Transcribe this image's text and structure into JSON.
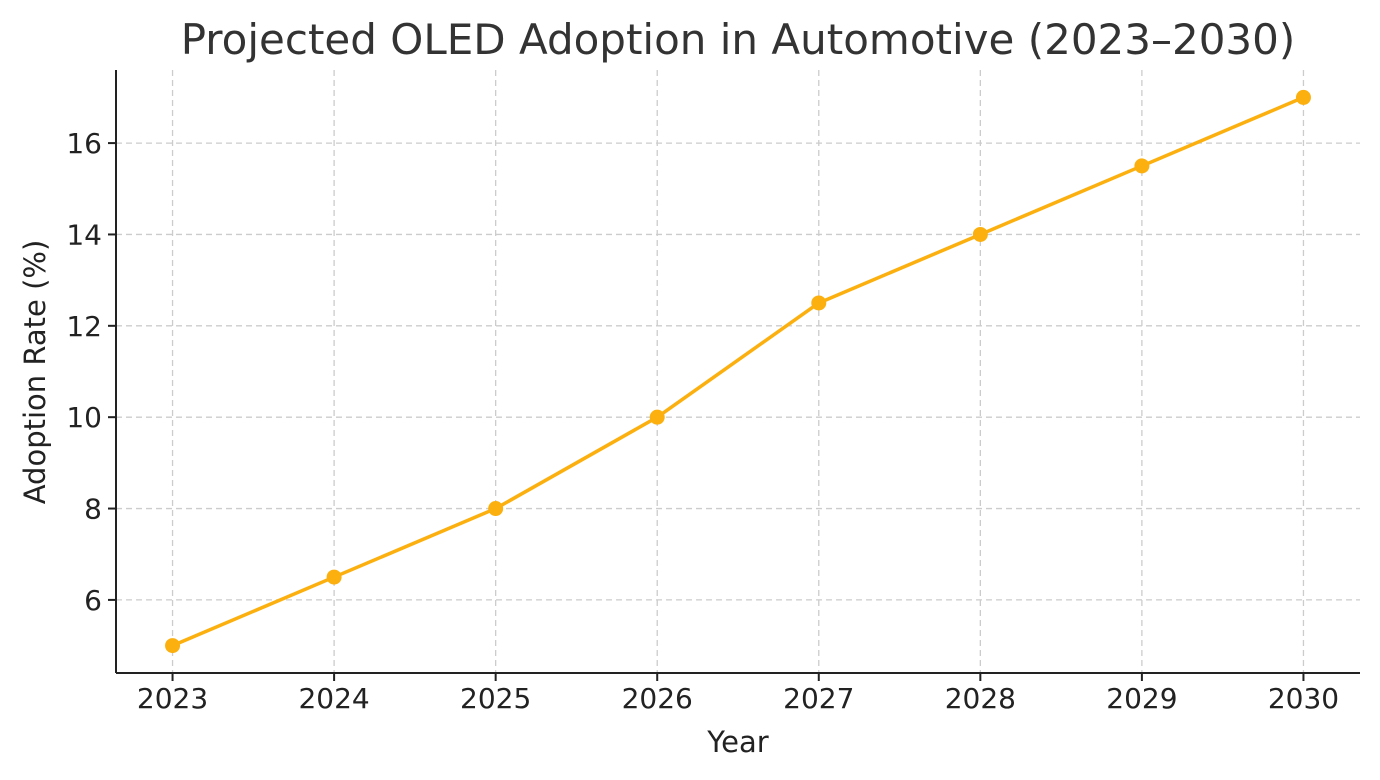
{
  "chart_data": {
    "type": "line",
    "title": "Projected OLED Adoption in Automotive (2023–2030)",
    "xlabel": "Year",
    "ylabel": "Adoption Rate (%)",
    "x": [
      2023,
      2024,
      2025,
      2026,
      2027,
      2028,
      2029,
      2030
    ],
    "x_tick_labels": [
      "2023",
      "2024",
      "2025",
      "2026",
      "2027",
      "2028",
      "2029",
      "2030"
    ],
    "series": [
      {
        "values": [
          5,
          6.5,
          8,
          10,
          12.5,
          14,
          15.5,
          17
        ],
        "color": "#FBB00F",
        "marker": "circle"
      }
    ],
    "y_ticks": [
      6,
      8,
      10,
      12,
      14,
      16
    ],
    "y_tick_labels": [
      "6",
      "8",
      "10",
      "12",
      "14",
      "16"
    ],
    "xlim": [
      2022.65,
      2030.35
    ],
    "ylim": [
      4.4,
      17.6
    ],
    "grid": true,
    "grid_style": "dashed"
  }
}
